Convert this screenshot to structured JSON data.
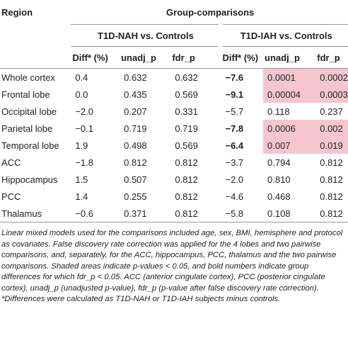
{
  "header": {
    "region": "Region",
    "group": "Group-comparisons",
    "subgroups": [
      "T1D-NAH vs. Controls",
      "T1D-IAH vs. Controls"
    ],
    "columns": [
      "Diff* (%)",
      "unadj_p",
      "fdr_p",
      "Diff* (%)",
      "unadj_p",
      "fdr_p"
    ]
  },
  "table": {
    "shade_color": "#f5c6cf",
    "rows": [
      {
        "cells": [
          "Whole cortex",
          "0.4",
          "0.632",
          "0.632",
          "−7.6",
          "0.0001",
          "0.0002"
        ],
        "bold": [
          4
        ],
        "shaded": [
          5,
          6
        ]
      },
      {
        "cells": [
          "Frontal lobe",
          "0.0",
          "0.435",
          "0.569",
          "−9.1",
          "0.00004",
          "0.0003"
        ],
        "bold": [
          4
        ],
        "shaded": [
          5,
          6
        ]
      },
      {
        "cells": [
          "Occipital lobe",
          "−2.0",
          "0.207",
          "0.331",
          "−5.7",
          "0.118",
          "0.237"
        ],
        "bold": [],
        "shaded": []
      },
      {
        "cells": [
          "Parietal lobe",
          "−0.1",
          "0.719",
          "0.719",
          "−7.8",
          "0.0006",
          "0.002"
        ],
        "bold": [
          4
        ],
        "shaded": [
          5,
          6
        ]
      },
      {
        "cells": [
          "Temporal lobe",
          "1.9",
          "0.498",
          "0.569",
          "−6.4",
          "0.007",
          "0.019"
        ],
        "bold": [
          4
        ],
        "shaded": [
          5,
          6
        ]
      },
      {
        "cells": [
          "ACC",
          "−1.8",
          "0.812",
          "0.812",
          "−3.7",
          "0.794",
          "0.812"
        ],
        "bold": [],
        "shaded": []
      },
      {
        "cells": [
          "Hippocampus",
          "1.5",
          "0.507",
          "0.812",
          "−2.0",
          "0.810",
          "0.812"
        ],
        "bold": [],
        "shaded": []
      },
      {
        "cells": [
          "PCC",
          "1.4",
          "0.255",
          "0.812",
          "−4.6",
          "0.468",
          "0.812"
        ],
        "bold": [],
        "shaded": []
      },
      {
        "cells": [
          "Thalamus",
          "−0.6",
          "0.371",
          "0.812",
          "−5.8",
          "0.108",
          "0.812"
        ],
        "bold": [],
        "shaded": []
      }
    ]
  },
  "footnote": {
    "text": "Linear mixed models used for the comparisons included age, sex, BMI, hemisphere and protocol as covariates. False discovery rate correction was applied for the 4 lobes and two pairwise comparisons, and, separately, for the ACC, hippocampus, PCC, thalamus and the two pairwise comparisons. Shaded areas indicate p-values < 0.05, and bold numbers indicate group differences for which fdr_p < 0.05. ACC (anterior cingulate cortex), PCC (posterior cingulate cortex), unadj_p (unadjusted p-value), fdr_p (p-value after false discovery rate correction).",
    "note": "*Differences were calculated as T1D-NAH or T1D-IAH subjects minus controls."
  }
}
